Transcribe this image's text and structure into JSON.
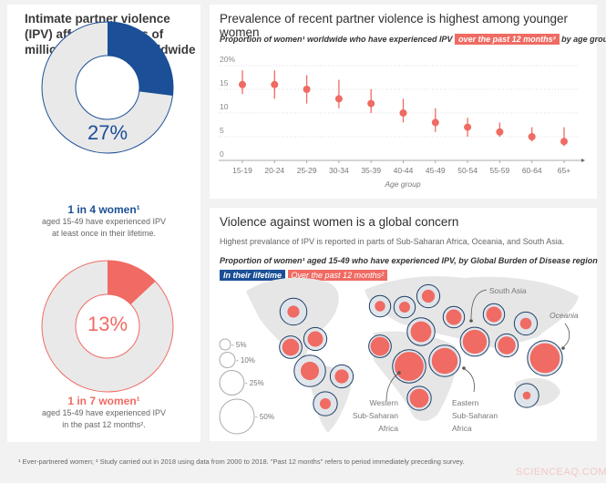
{
  "colors": {
    "lifetime": "#1b4f97",
    "past12": "#ef6b63",
    "ring_bg": "#e9e9e9",
    "map": "#e6e6e6"
  },
  "left": {
    "title": "Intimate partner violence (IPV) affects the lives of millions of women worldwide",
    "donut1": {
      "value": 27,
      "label": "27%",
      "headline": "1 in 4 women¹",
      "line1": "aged 15-49 have experienced IPV",
      "line2": "at least once in their lifetime."
    },
    "donut2": {
      "value": 13,
      "label": "13%",
      "headline": "1 in 7 women¹",
      "line1": "aged 15-49 have experienced IPV",
      "line2": "in the past 12 months²."
    }
  },
  "age_chart": {
    "title": "Prevalence of recent partner violence is highest among younger women",
    "subtitle_pre": "Proportion of women¹ worldwide who have experienced IPV",
    "subtitle_tag": "over the past 12 months²",
    "subtitle_post": "by age group"
  },
  "chart_data": {
    "type": "scatter",
    "xlabel": "Age group",
    "categories": [
      "15-19",
      "20-24",
      "25-29",
      "30-34",
      "35-39",
      "40-44",
      "45-49",
      "50-54",
      "55-59",
      "60-64",
      "65+"
    ],
    "values": [
      16,
      16,
      15,
      13,
      12,
      10,
      8,
      7,
      6,
      5,
      4
    ],
    "error_low": [
      14,
      13,
      12,
      11,
      10,
      8,
      6,
      5,
      5,
      4,
      3
    ],
    "error_high": [
      19,
      19,
      18,
      17,
      15,
      13,
      11,
      9,
      8,
      7,
      7
    ],
    "ylim": [
      0,
      20
    ],
    "yticks": [
      "0",
      "5",
      "10",
      "15",
      "20%"
    ],
    "grid": true
  },
  "map": {
    "title": "Violence against women is a global concern",
    "description": "Highest prevalance of IPV is reported in parts of Sub-Saharan Africa, Oceania, and South Asia.",
    "subtitle": "Proportion of women¹ aged 15-49 who have experienced IPV, by Global Burden of Disease region",
    "legend_lifetime": "In their lifetime",
    "legend_past12": "Over the past 12 months²",
    "size_legend": [
      {
        "value": 5,
        "label": "- 5%"
      },
      {
        "value": 10,
        "label": "- 10%"
      },
      {
        "value": 25,
        "label": "- 25%"
      },
      {
        "value": 50,
        "label": "- 50%"
      }
    ],
    "annotations": {
      "south_asia": "South Asia",
      "oceania": "Oceania",
      "western_1": "Western",
      "western_2": "Sub-Saharan",
      "western_3": "Africa",
      "eastern_1": "Eastern",
      "eastern_2": "Sub-Saharan",
      "eastern_3": "Africa"
    },
    "regions": [
      {
        "lifetime": 30,
        "past12": 6
      },
      {
        "lifetime": 22,
        "past12": 10
      },
      {
        "lifetime": 21,
        "past12": 12
      },
      {
        "lifetime": 41,
        "past12": 14
      },
      {
        "lifetime": 22,
        "past12": 8
      },
      {
        "lifetime": 24,
        "past12": 5
      },
      {
        "lifetime": 19,
        "past12": 4.5
      },
      {
        "lifetime": 19,
        "past12": 5
      },
      {
        "lifetime": 22,
        "past12": 7
      },
      {
        "lifetime": 32,
        "past12": 18
      },
      {
        "lifetime": 19,
        "past12": 10
      },
      {
        "lifetime": 19,
        "past12": 10
      },
      {
        "lifetime": 22,
        "past12": 5.5
      },
      {
        "lifetime": 21,
        "past12": 15
      },
      {
        "lifetime": 46,
        "past12": 35
      },
      {
        "lifetime": 41,
        "past12": 28
      },
      {
        "lifetime": 35,
        "past12": 24
      },
      {
        "lifetime": 22,
        "past12": 13
      },
      {
        "lifetime": 51,
        "past12": 37
      },
      {
        "lifetime": 24,
        "past12": 15
      },
      {
        "lifetime": 24,
        "past12": 2.6
      }
    ]
  },
  "footnote": "¹ Ever-partnered women; ² Study carried out in 2018 using data from 2000 to 2018. \"Past 12 months\" refers to period immediately preceding survey.",
  "watermark": "SCIENCEAQ.COM"
}
